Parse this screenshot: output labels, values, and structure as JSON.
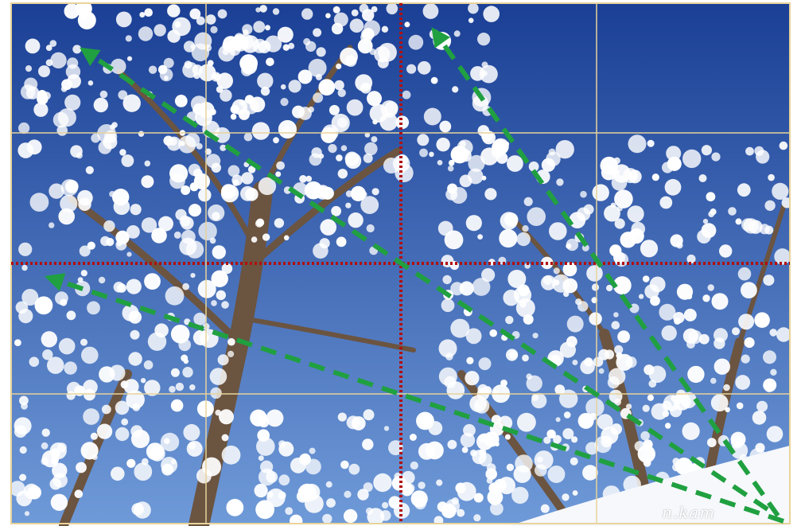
{
  "photo": {
    "subject": "frost-covered-trees-against-blue-sky",
    "signature": "n.kam",
    "colors": {
      "sky_top": "#1a3f95",
      "sky_bottom": "#6f9ad8",
      "frost": "#ffffff",
      "trunk": "#6b5440",
      "frame": "#e8d39a"
    }
  },
  "overlay": {
    "grid_color": "#e8d39a",
    "third_line_color": "#b01010",
    "arrow_color": "#20a040"
  }
}
